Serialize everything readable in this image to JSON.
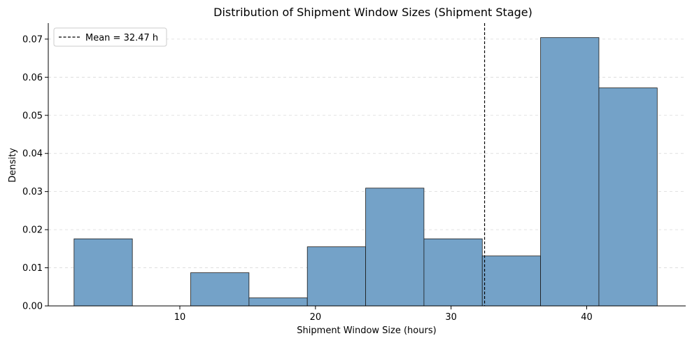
{
  "chart_data": {
    "type": "bar",
    "title": "Distribution of Shipment Window Sizes (Shipment Stage)",
    "xlabel": "Shipment Window Size (hours)",
    "ylabel": "Density",
    "xlim": [
      0.3,
      47.3
    ],
    "ylim": [
      0,
      0.0742
    ],
    "x_ticks": [
      10,
      20,
      30,
      40
    ],
    "x_tick_labels": [
      "10",
      "20",
      "30",
      "40"
    ],
    "y_ticks": [
      0,
      0.01,
      0.02,
      0.03,
      0.04,
      0.05,
      0.06,
      0.07
    ],
    "y_tick_labels": [
      "0.00",
      "0.01",
      "0.02",
      "0.03",
      "0.04",
      "0.05",
      "0.06",
      "0.07"
    ],
    "bin_edges": [
      2.2,
      6.5,
      10.8,
      15.1,
      19.4,
      23.7,
      28.0,
      32.3,
      36.6,
      40.9,
      45.2
    ],
    "values": [
      0.0176,
      0.0,
      0.0087,
      0.0021,
      0.0155,
      0.0309,
      0.0176,
      0.0131,
      0.0704,
      0.0572
    ],
    "mean": 32.47,
    "legend": {
      "label": "Mean = 32.47 h",
      "position": "upper left"
    },
    "grid": {
      "y": true,
      "x": false,
      "style": "dashed"
    },
    "colors": {
      "bar_fill": "#74a2c8",
      "bar_edge": "#1a1a1a",
      "mean_line": "#000000",
      "grid": "#d9d9d9"
    }
  }
}
